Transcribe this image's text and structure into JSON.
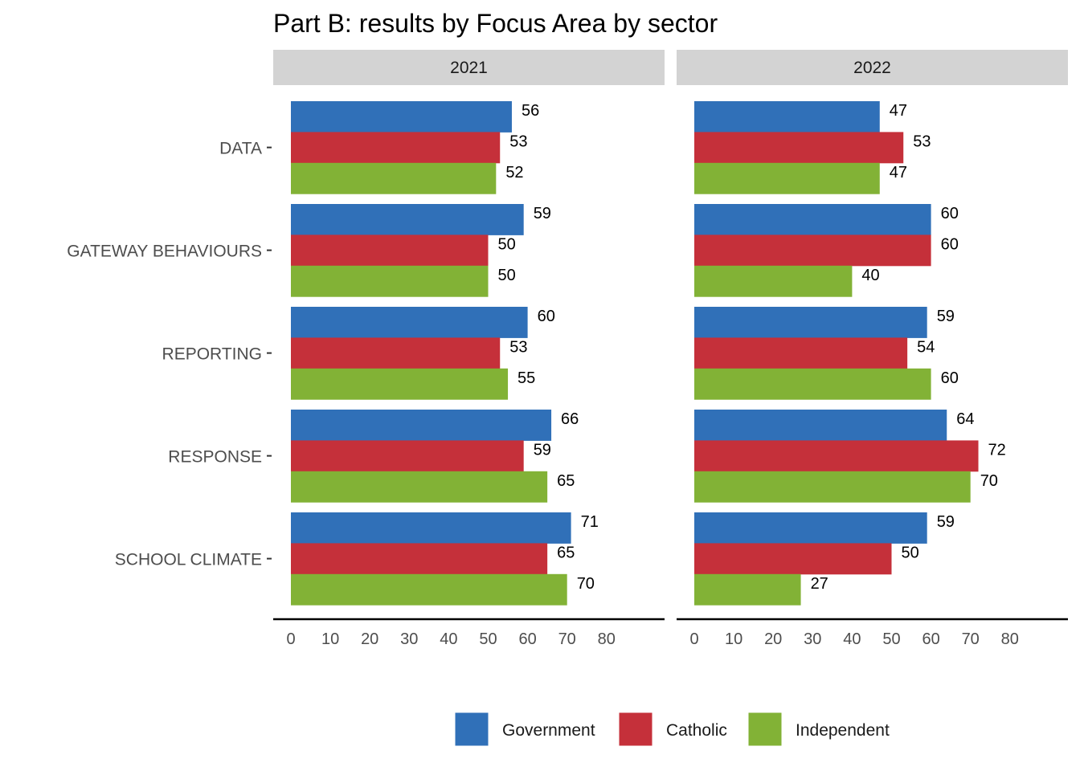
{
  "chart_data": {
    "type": "bar",
    "orientation": "horizontal",
    "title": "Part B: results by Focus Area by sector",
    "facets": [
      "2021",
      "2022"
    ],
    "categories": [
      "DATA",
      "GATEWAY BEHAVIOURS",
      "REPORTING",
      "RESPONSE",
      "SCHOOL CLIMATE"
    ],
    "x_ticks": [
      "0",
      "10",
      "20",
      "30",
      "40",
      "50",
      "60",
      "70",
      "80"
    ],
    "xlim": [
      0,
      80
    ],
    "grid": false,
    "legend_position": "bottom",
    "legend_entries": [
      "Government",
      "Catholic",
      "Independent"
    ],
    "colors": {
      "Government": "#3070B8",
      "Catholic": "#C5303A",
      "Independent": "#82B236",
      "strip_background": "#D3D3D3",
      "axis_line": "#000000",
      "axis_text": "#4D4D4D"
    },
    "series": [
      {
        "name": "Government",
        "values": {
          "2021": [
            56,
            59,
            60,
            66,
            71
          ],
          "2022": [
            47,
            60,
            59,
            64,
            59
          ]
        }
      },
      {
        "name": "Catholic",
        "values": {
          "2021": [
            53,
            50,
            53,
            59,
            65
          ],
          "2022": [
            53,
            60,
            54,
            72,
            50
          ]
        }
      },
      {
        "name": "Independent",
        "values": {
          "2021": [
            52,
            50,
            55,
            65,
            70
          ],
          "2022": [
            47,
            40,
            60,
            70,
            27
          ]
        }
      }
    ]
  }
}
